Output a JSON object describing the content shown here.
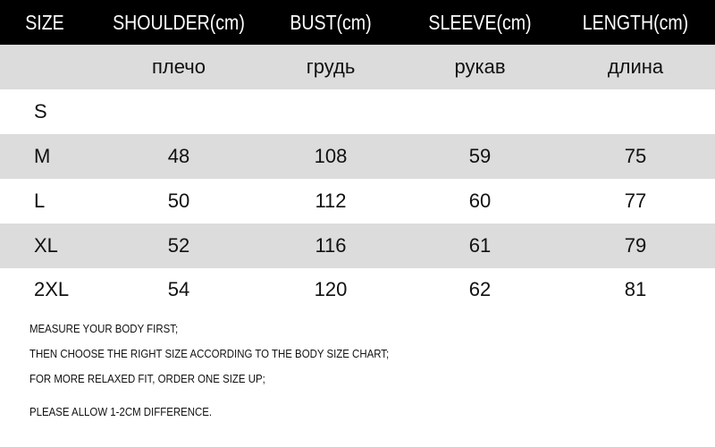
{
  "header": [
    "SIZE",
    "SHOULDER(cm)",
    "BUST(cm)",
    "SLEEVE(cm)",
    "LENGTH(cm)"
  ],
  "subheader": [
    "",
    "плечо",
    "грудь",
    "рукав",
    "длина"
  ],
  "rows": [
    [
      "S",
      "",
      "",
      "",
      ""
    ],
    [
      "M",
      "48",
      "108",
      "59",
      "75"
    ],
    [
      "L",
      "50",
      "112",
      "60",
      "77"
    ],
    [
      "XL",
      "52",
      "116",
      "61",
      "79"
    ],
    [
      "2XL",
      "54",
      "120",
      "62",
      "81"
    ]
  ],
  "notes": [
    "MEASURE YOUR BODY FIRST;",
    "THEN CHOOSE THE RIGHT SIZE ACCORDING TO THE BODY SIZE CHART;",
    "FOR MORE RELAXED FIT, ORDER ONE SIZE UP;",
    "PLEASE ALLOW 1-2CM DIFFERENCE."
  ],
  "colors": {
    "header_bg": "#000000",
    "stripe": "#dcdcdc"
  }
}
